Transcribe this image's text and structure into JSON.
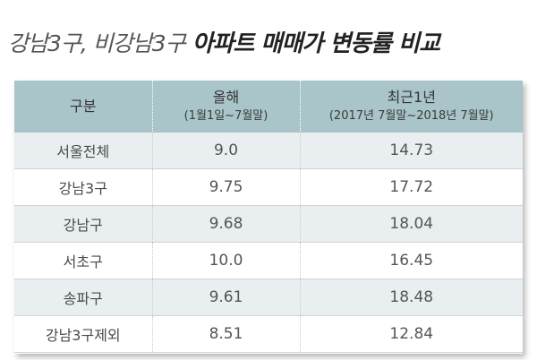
{
  "title": {
    "part1": "강남3구, 비강남3구",
    "part2": "아파트 매매가 변동률 비교"
  },
  "table": {
    "headers": [
      {
        "main": "구분",
        "sub": ""
      },
      {
        "main": "올해",
        "sub": "(1월1일~7월말)"
      },
      {
        "main": "최근1년",
        "sub": "(2017년 7월말~2018년 7월말)"
      }
    ],
    "rows": [
      {
        "label": "서울전체",
        "this_year": "9.0",
        "recent_year": "14.73"
      },
      {
        "label": "강남3구",
        "this_year": "9.75",
        "recent_year": "17.72"
      },
      {
        "label": "강남구",
        "this_year": "9.68",
        "recent_year": "18.04"
      },
      {
        "label": "서초구",
        "this_year": "10.0",
        "recent_year": "16.45"
      },
      {
        "label": "송파구",
        "this_year": "9.61",
        "recent_year": "18.48"
      },
      {
        "label": "강남3구제외",
        "this_year": "8.51",
        "recent_year": "12.84"
      }
    ]
  },
  "colors": {
    "header_bg": "#a9c5c9",
    "row_alt_bg": "#e9eef1"
  }
}
